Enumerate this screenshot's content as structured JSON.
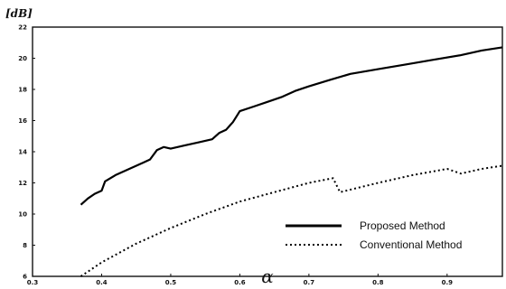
{
  "chart_data": {
    "type": "line",
    "title": "",
    "xlabel": "α",
    "ylabel": "[dB]",
    "xlim": [
      0.3,
      0.98
    ],
    "ylim": [
      6,
      22
    ],
    "xticks": [
      0.3,
      0.4,
      0.5,
      0.6,
      0.7,
      0.8,
      0.9
    ],
    "xtick_labels": [
      "0.3",
      "0.4",
      "0.5",
      "0.6",
      "0.7",
      "0.8",
      "0.9"
    ],
    "yticks": [
      6,
      8,
      10,
      12,
      14,
      16,
      18,
      20,
      22
    ],
    "ytick_labels": [
      "6",
      "8",
      "10",
      "12",
      "14",
      "16",
      "18",
      "20",
      "22"
    ],
    "grid": false,
    "legend_position": "bottom-right",
    "series": [
      {
        "name": "Proposed Method",
        "style": "solid",
        "color": "#000000",
        "x": [
          0.37,
          0.38,
          0.39,
          0.4,
          0.405,
          0.42,
          0.44,
          0.46,
          0.47,
          0.48,
          0.49,
          0.5,
          0.52,
          0.54,
          0.56,
          0.57,
          0.58,
          0.59,
          0.6,
          0.62,
          0.64,
          0.66,
          0.68,
          0.7,
          0.73,
          0.76,
          0.8,
          0.84,
          0.88,
          0.92,
          0.95,
          0.98
        ],
        "y": [
          10.6,
          11.0,
          11.3,
          11.5,
          12.1,
          12.5,
          12.9,
          13.3,
          13.5,
          14.1,
          14.3,
          14.2,
          14.4,
          14.6,
          14.8,
          15.2,
          15.4,
          15.9,
          16.6,
          16.9,
          17.2,
          17.5,
          17.9,
          18.2,
          18.6,
          19.0,
          19.3,
          19.6,
          19.9,
          20.2,
          20.5,
          20.7
        ]
      },
      {
        "name": "Conventional Method",
        "style": "dotted",
        "color": "#000000",
        "x": [
          0.37,
          0.4,
          0.45,
          0.5,
          0.55,
          0.6,
          0.65,
          0.7,
          0.735,
          0.745,
          0.8,
          0.85,
          0.9,
          0.92,
          0.95,
          0.98
        ],
        "y": [
          6.0,
          6.9,
          8.1,
          9.1,
          10.0,
          10.8,
          11.4,
          12.0,
          12.3,
          11.4,
          12.0,
          12.5,
          12.9,
          12.6,
          12.9,
          13.1
        ]
      }
    ]
  }
}
